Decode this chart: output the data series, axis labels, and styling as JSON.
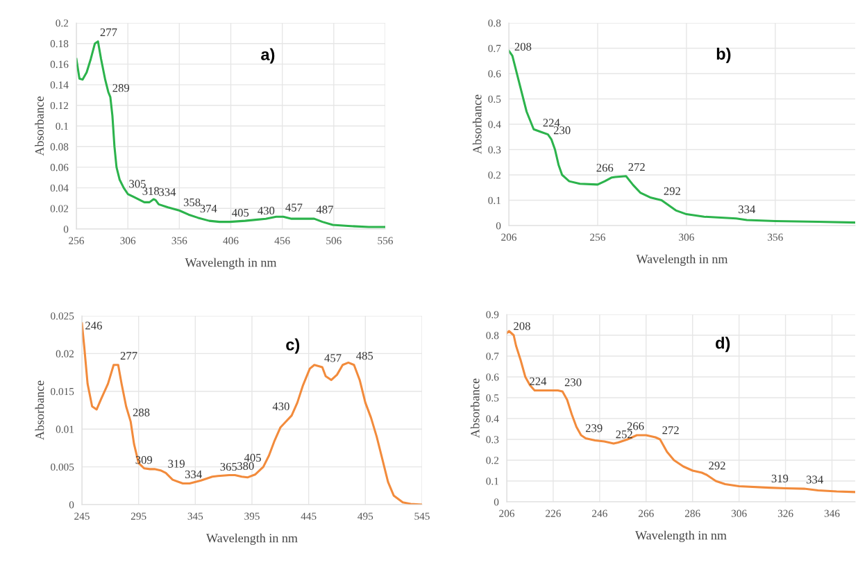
{
  "chart_data": [
    {
      "type": "line",
      "xlabel": "Wavelength in nm",
      "ylabel": "Absorbance",
      "grid": true,
      "legend": false,
      "marker": "none",
      "line_style": "solid",
      "xlim": [
        256,
        556
      ],
      "xticks": [
        256,
        306,
        356,
        406,
        456,
        506,
        556
      ],
      "ylim": [
        0,
        0.2
      ],
      "yticks": [
        0,
        0.02,
        0.04,
        0.06,
        0.08,
        0.1,
        0.12,
        0.14,
        0.16,
        0.18,
        0.2
      ],
      "series": [
        {
          "color": "#2cb34c",
          "x": [
            256,
            259,
            262,
            266,
            270,
            274,
            277,
            280,
            284,
            287,
            289,
            291,
            293,
            295,
            298,
            302,
            306,
            312,
            318,
            322,
            327,
            331,
            333,
            336,
            345,
            356,
            365,
            374,
            385,
            395,
            405,
            420,
            430,
            440,
            450,
            457,
            465,
            475,
            487,
            495,
            505,
            520,
            540,
            556
          ],
          "values": [
            0.165,
            0.146,
            0.145,
            0.152,
            0.165,
            0.18,
            0.182,
            0.165,
            0.145,
            0.133,
            0.128,
            0.11,
            0.08,
            0.06,
            0.048,
            0.04,
            0.034,
            0.031,
            0.028,
            0.026,
            0.026,
            0.029,
            0.028,
            0.024,
            0.021,
            0.018,
            0.014,
            0.011,
            0.008,
            0.007,
            0.007,
            0.008,
            0.009,
            0.01,
            0.012,
            0.012,
            0.01,
            0.01,
            0.01,
            0.007,
            0.004,
            0.003,
            0.002,
            0.002
          ]
        }
      ],
      "annotations": [
        "a)",
        {
          "text": "277",
          "x": 277,
          "y": 0.182
        },
        {
          "text": "289",
          "x": 289,
          "y": 0.128
        },
        {
          "text": "305",
          "x": 305,
          "y": 0.035
        },
        {
          "text": "318",
          "x": 318,
          "y": 0.028
        },
        {
          "text": "334",
          "x": 334,
          "y": 0.027
        },
        {
          "text": "358",
          "x": 358,
          "y": 0.017
        },
        {
          "text": "374",
          "x": 374,
          "y": 0.011
        },
        {
          "text": "405",
          "x": 405,
          "y": 0.007
        },
        {
          "text": "430",
          "x": 430,
          "y": 0.009
        },
        {
          "text": "457",
          "x": 457,
          "y": 0.012
        },
        {
          "text": "487",
          "x": 487,
          "y": 0.01
        }
      ]
    },
    {
      "type": "line",
      "xlabel": "Wavelength in nm",
      "ylabel": "Absorbance",
      "grid": true,
      "legend": false,
      "marker": "none",
      "line_style": "solid",
      "xlim": [
        206,
        401
      ],
      "xticks": [
        206,
        256,
        306,
        356
      ],
      "ylim": [
        0,
        0.8
      ],
      "yticks": [
        0,
        0.1,
        0.2,
        0.3,
        0.4,
        0.5,
        0.6,
        0.7,
        0.8
      ],
      "series": [
        {
          "color": "#2cb34c",
          "x": [
            206,
            208,
            212,
            216,
            220,
            224,
            228,
            230,
            232,
            234,
            236,
            240,
            246,
            256,
            260,
            264,
            266,
            272,
            276,
            280,
            286,
            292,
            296,
            300,
            306,
            316,
            334,
            340,
            356,
            380,
            401
          ],
          "values": [
            0.69,
            0.67,
            0.56,
            0.45,
            0.38,
            0.37,
            0.36,
            0.34,
            0.3,
            0.24,
            0.2,
            0.175,
            0.165,
            0.162,
            0.175,
            0.19,
            0.192,
            0.195,
            0.16,
            0.13,
            0.11,
            0.1,
            0.08,
            0.06,
            0.045,
            0.035,
            0.028,
            0.022,
            0.018,
            0.015,
            0.012
          ]
        }
      ],
      "annotations": [
        "b)",
        {
          "text": "208",
          "x": 208,
          "y": 0.67
        },
        {
          "text": "224",
          "x": 224,
          "y": 0.37
        },
        {
          "text": "230",
          "x": 230,
          "y": 0.34
        },
        {
          "text": "266",
          "x": 266,
          "y": 0.192
        },
        {
          "text": "272",
          "x": 272,
          "y": 0.195
        },
        {
          "text": "292",
          "x": 292,
          "y": 0.1
        },
        {
          "text": "334",
          "x": 334,
          "y": 0.028
        }
      ]
    },
    {
      "type": "line",
      "xlabel": "Wavelength in nm",
      "ylabel": "Absorbance",
      "grid": true,
      "legend": false,
      "marker": "none",
      "line_style": "solid",
      "xlim": [
        245,
        545
      ],
      "xticks": [
        245,
        295,
        345,
        395,
        445,
        495,
        545
      ],
      "ylim": [
        0,
        0.025
      ],
      "yticks": [
        0,
        0.005,
        0.01,
        0.015,
        0.02,
        0.025
      ],
      "series": [
        {
          "color": "#f28b3c",
          "x": [
            245,
            247,
            250,
            254,
            258,
            262,
            268,
            273,
            277,
            280,
            284,
            288,
            291,
            295,
            300,
            305,
            309,
            315,
            319,
            325,
            334,
            340,
            350,
            360,
            365,
            375,
            380,
            386,
            391,
            398,
            405,
            410,
            415,
            420,
            425,
            430,
            435,
            440,
            446,
            450,
            457,
            460,
            465,
            470,
            475,
            480,
            485,
            490,
            495,
            500,
            505,
            510,
            515,
            520,
            528,
            535,
            545
          ],
          "values": [
            0.024,
            0.021,
            0.016,
            0.013,
            0.0126,
            0.014,
            0.016,
            0.0185,
            0.0185,
            0.016,
            0.013,
            0.011,
            0.008,
            0.0055,
            0.0048,
            0.0047,
            0.0047,
            0.0045,
            0.0042,
            0.0033,
            0.0028,
            0.0028,
            0.0032,
            0.0037,
            0.0038,
            0.0039,
            0.0039,
            0.0037,
            0.0036,
            0.004,
            0.005,
            0.0065,
            0.0085,
            0.0102,
            0.011,
            0.0118,
            0.0135,
            0.0158,
            0.018,
            0.0185,
            0.0182,
            0.017,
            0.0165,
            0.0172,
            0.0185,
            0.0188,
            0.0185,
            0.0165,
            0.0135,
            0.0115,
            0.009,
            0.006,
            0.003,
            0.0012,
            0.0003,
            0.0001,
            0
          ]
        }
      ],
      "annotations": [
        "c)",
        {
          "text": "246",
          "x": 246,
          "y": 0.0225
        },
        {
          "text": "277",
          "x": 277,
          "y": 0.0185
        },
        {
          "text": "288",
          "x": 288,
          "y": 0.011
        },
        {
          "text": "309",
          "x": 309,
          "y": 0.0047
        },
        {
          "text": "319",
          "x": 319,
          "y": 0.0042
        },
        {
          "text": "334",
          "x": 334,
          "y": 0.0028
        },
        {
          "text": "365",
          "x": 365,
          "y": 0.0038
        },
        {
          "text": "380",
          "x": 380,
          "y": 0.0039
        },
        {
          "text": "405",
          "x": 405,
          "y": 0.005
        },
        {
          "text": "430",
          "x": 430,
          "y": 0.0118
        },
        {
          "text": "457",
          "x": 457,
          "y": 0.0182
        },
        {
          "text": "485",
          "x": 485,
          "y": 0.0185
        }
      ]
    },
    {
      "type": "line",
      "xlabel": "Wavelength in nm",
      "ylabel": "Absorbance",
      "grid": true,
      "legend": false,
      "marker": "none",
      "line_style": "solid",
      "xlim": [
        206,
        356
      ],
      "xticks": [
        206,
        226,
        246,
        266,
        286,
        306,
        326,
        346
      ],
      "ylim": [
        0,
        0.9
      ],
      "yticks": [
        0,
        0.1,
        0.2,
        0.3,
        0.4,
        0.5,
        0.6,
        0.7,
        0.8,
        0.9
      ],
      "series": [
        {
          "color": "#f28b3c",
          "x": [
            206,
            207,
            209,
            210,
            212,
            214,
            216,
            218,
            220,
            224,
            228,
            230,
            232,
            234,
            236,
            238,
            240,
            244,
            248,
            252,
            254,
            258,
            262,
            266,
            270,
            272,
            275,
            278,
            282,
            286,
            290,
            292,
            296,
            300,
            306,
            319,
            326,
            334,
            340,
            348,
            356
          ],
          "values": [
            0.81,
            0.82,
            0.8,
            0.75,
            0.68,
            0.6,
            0.56,
            0.535,
            0.535,
            0.535,
            0.535,
            0.53,
            0.49,
            0.42,
            0.36,
            0.32,
            0.305,
            0.295,
            0.29,
            0.28,
            0.285,
            0.3,
            0.32,
            0.32,
            0.31,
            0.3,
            0.24,
            0.2,
            0.17,
            0.15,
            0.14,
            0.13,
            0.1,
            0.085,
            0.075,
            0.068,
            0.065,
            0.063,
            0.055,
            0.05,
            0.047
          ]
        }
      ],
      "annotations": [
        "d)",
        {
          "text": "208",
          "x": 208,
          "y": 0.8
        },
        {
          "text": "224",
          "x": 224,
          "y": 0.535
        },
        {
          "text": "230",
          "x": 230,
          "y": 0.53
        },
        {
          "text": "239",
          "x": 239,
          "y": 0.31
        },
        {
          "text": "252",
          "x": 252,
          "y": 0.28
        },
        {
          "text": "266",
          "x": 266,
          "y": 0.32
        },
        {
          "text": "272",
          "x": 272,
          "y": 0.3
        },
        {
          "text": "292",
          "x": 292,
          "y": 0.13
        },
        {
          "text": "319",
          "x": 319,
          "y": 0.068
        },
        {
          "text": "334",
          "x": 334,
          "y": 0.063
        }
      ]
    }
  ]
}
